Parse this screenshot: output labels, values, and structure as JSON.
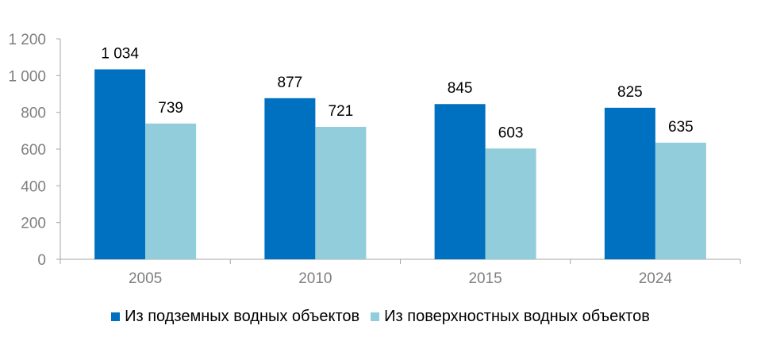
{
  "chart_data": {
    "type": "bar",
    "categories": [
      "2005",
      "2010",
      "2015",
      "2024"
    ],
    "series": [
      {
        "name": "Из подземных водных объектов",
        "values": [
          1034,
          877,
          845,
          825
        ],
        "labels": [
          "1 034",
          "877",
          "845",
          "825"
        ],
        "color": "#0070c0"
      },
      {
        "name": "Из поверхностных водных объектов",
        "values": [
          739,
          721,
          603,
          635
        ],
        "labels": [
          "739",
          "721",
          "603",
          "635"
        ],
        "color": "#92cddc"
      }
    ],
    "ylim": [
      0,
      1200
    ],
    "yticks": [
      0,
      200,
      400,
      600,
      800,
      1000,
      1200
    ],
    "ytick_labels": [
      "0",
      "200",
      "400",
      "600",
      "800",
      "1 000",
      "1 200"
    ],
    "grid": false,
    "legend_position": "bottom"
  }
}
